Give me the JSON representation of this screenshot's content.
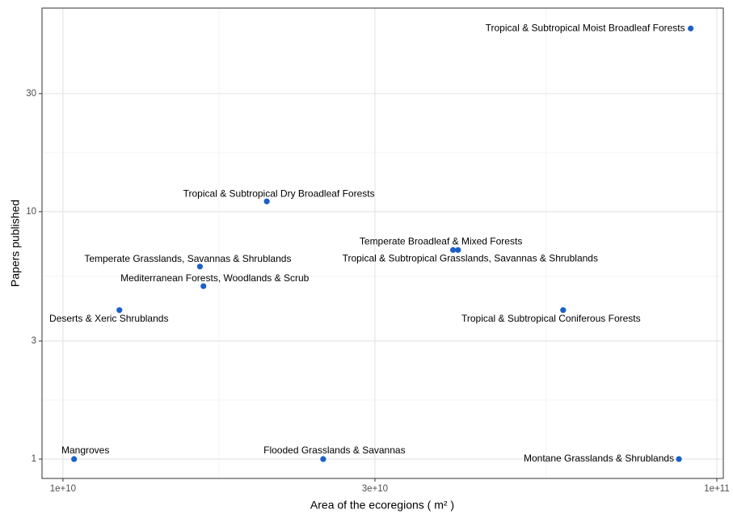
{
  "chart_data": {
    "type": "scatter",
    "log_x": true,
    "log_y": true,
    "grid": true,
    "color": "#1c5fc8",
    "x_label": "Area of the ecoregions ( m² )",
    "y_label": "Papers published",
    "xlim": [
      9290000000,
      102300000000
    ],
    "ylim": [
      0.835,
      66.5
    ],
    "xticks": [
      {
        "value": 10000000000,
        "label": "1e+10"
      },
      {
        "value": 30000000000,
        "label": "3e+10"
      },
      {
        "value": 100000000000,
        "label": "1e+11"
      }
    ],
    "yticks": [
      1,
      3,
      10,
      30
    ],
    "labels": [
      "Tropical & Subtropical Moist Broadleaf Forests",
      "Tropical & Subtropical Dry Broadleaf Forests",
      "Temperate Broadleaf & Mixed Forests",
      "Tropical & Subtropical Grasslands, Savannas & Shrublands",
      "Temperate Grasslands, Savannas & Shrublands",
      "Mediterranean Forests, Woodlands & Scrub",
      "Deserts & Xeric Shrublands",
      "Tropical & Subtropical Coniferous Forests",
      "Mangroves",
      "Flooded Grasslands & Savannas",
      "Montane Grasslands & Shrublands"
    ],
    "x": [
      91200000000,
      20500000000,
      39500000000,
      40200000000,
      16200000000,
      16400000000,
      12200000000,
      58200000000,
      10400000000,
      25000000000,
      87500000000
    ],
    "y": [
      55,
      11,
      7,
      7,
      6,
      5,
      4,
      4,
      1,
      1,
      1
    ]
  }
}
